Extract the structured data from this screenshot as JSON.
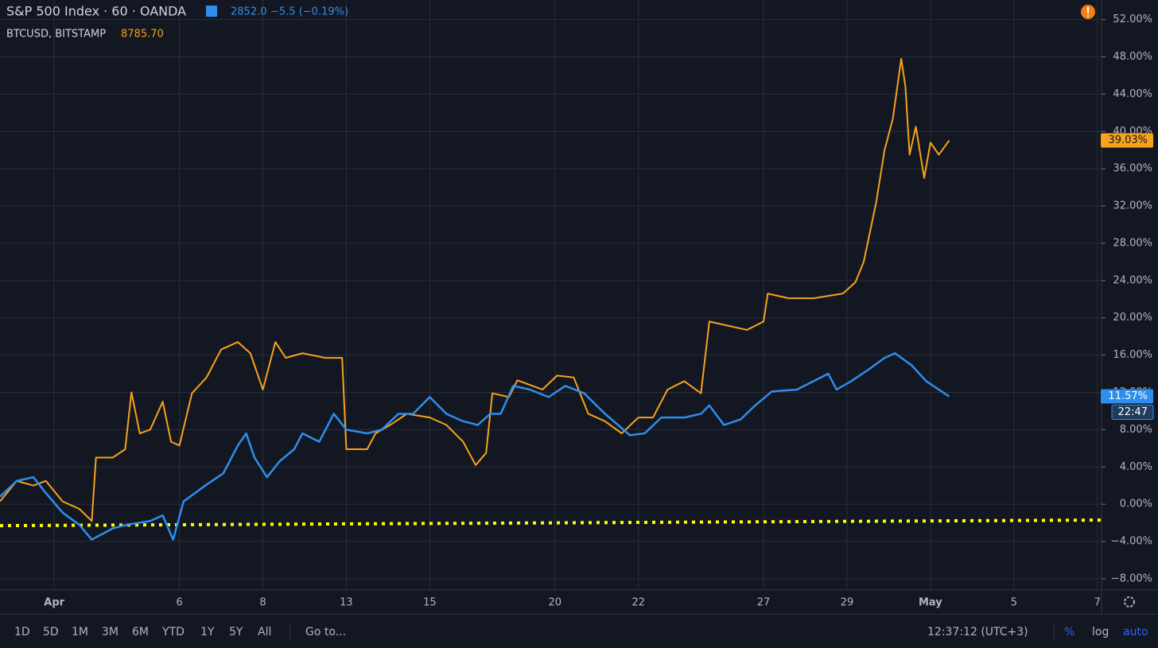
{
  "chart_data": {
    "type": "line",
    "series": [
      {
        "name": "S&P 500 Index · 60 · OANDA",
        "quote": "2852.0",
        "change": "−5.5 (−0.19%)",
        "color": "#2f8eed",
        "last_label": "11.57%",
        "countdown": "22:47",
        "x": [
          -1.3,
          -0.9,
          -0.5,
          -0.2,
          0.2,
          0.6,
          0.9,
          1.4,
          1.75,
          2.3,
          2.6,
          2.85,
          3.1,
          3.65,
          4.05,
          4.4,
          4.6,
          4.8,
          5.1,
          5.4,
          5.75,
          5.95,
          6.35,
          6.7,
          7.0,
          7.5,
          7.85,
          8.25,
          8.6,
          9.0,
          9.4,
          9.8,
          10.15,
          10.45,
          10.7,
          11.0,
          11.4,
          11.85,
          12.25,
          12.7,
          13.2,
          13.8,
          14.15,
          14.55,
          15.1,
          15.5,
          15.7,
          16.05,
          16.45,
          16.8,
          17.2,
          17.8,
          18.55,
          18.75,
          19.1,
          19.5,
          19.9,
          20.15,
          20.55,
          20.9,
          21.2,
          21.45
        ],
        "values": [
          0.8,
          2.5,
          2.9,
          1.2,
          -0.9,
          -2.2,
          -3.8,
          -2.6,
          -2.2,
          -1.8,
          -1.2,
          -3.8,
          0.3,
          2.1,
          3.3,
          6.3,
          7.6,
          5,
          2.9,
          4.6,
          5.9,
          7.6,
          6.7,
          9.7,
          8,
          7.6,
          8,
          9.7,
          9.7,
          11.5,
          9.7,
          8.9,
          8.5,
          9.7,
          9.7,
          12.7,
          12.3,
          11.5,
          12.7,
          11.9,
          9.7,
          7.4,
          7.6,
          9.3,
          9.3,
          9.7,
          10.6,
          8.5,
          9.1,
          10.6,
          12.1,
          12.3,
          14,
          12.3,
          13.2,
          14.4,
          15.7,
          16.2,
          14.9,
          13.2,
          12.3,
          11.57
        ]
      },
      {
        "name": "BTCUSD, BITSTAMP",
        "quote": "8785.70",
        "color": "#f7a21b",
        "last_label": "39.03%",
        "x": [
          -1.3,
          -0.9,
          -0.5,
          -0.2,
          0.2,
          0.6,
          0.9,
          1.0,
          1.4,
          1.7,
          1.85,
          2.05,
          2.3,
          2.6,
          2.8,
          3.0,
          3.3,
          3.65,
          4.0,
          4.4,
          4.7,
          5.0,
          5.3,
          5.55,
          5.95,
          6.5,
          6.9,
          7.0,
          7.5,
          7.7,
          8.05,
          8.45,
          9.0,
          9.4,
          9.8,
          10.1,
          10.35,
          10.5,
          10.9,
          11.1,
          11.7,
          12.05,
          12.45,
          12.8,
          13.2,
          13.6,
          14.0,
          14.35,
          14.7,
          15.1,
          15.5,
          15.7,
          16.2,
          16.6,
          17.0,
          17.1,
          17.6,
          18.2,
          18.9,
          19.2,
          19.4,
          19.7,
          19.9,
          20.1,
          20.3,
          20.4,
          20.5,
          20.65,
          20.85,
          21.0,
          21.2,
          21.45
        ],
        "values": [
          0.3,
          2.5,
          2,
          2.5,
          0.3,
          -0.5,
          -1.8,
          5,
          5,
          5.9,
          12,
          7.6,
          8,
          11,
          6.7,
          6.3,
          11.9,
          13.6,
          16.6,
          17.4,
          16.2,
          12.3,
          17.4,
          15.7,
          16.2,
          15.7,
          15.7,
          5.9,
          5.9,
          7.6,
          8.5,
          9.7,
          9.3,
          8.5,
          6.7,
          4.2,
          5.5,
          11.9,
          11.5,
          13.3,
          12.3,
          13.8,
          13.6,
          9.7,
          8.9,
          7.6,
          9.3,
          9.3,
          12.3,
          13.2,
          11.9,
          19.6,
          19.1,
          18.7,
          19.6,
          22.6,
          22.1,
          22.1,
          22.6,
          23.8,
          26,
          32.4,
          38,
          41.4,
          47.8,
          44.8,
          37.5,
          40.5,
          35,
          38.8,
          37.5,
          39.03
        ]
      }
    ],
    "reference_line": {
      "x": [
        -1.3,
        25.1
      ],
      "values": [
        -2.3,
        -1.7
      ],
      "color": "#ffff00"
    },
    "xlim": [
      -1.3,
      25.1
    ],
    "xticks": [
      {
        "value": 0,
        "label": "Apr"
      },
      {
        "value": 3,
        "label": "6"
      },
      {
        "value": 5,
        "label": "8"
      },
      {
        "value": 7,
        "label": "13"
      },
      {
        "value": 9,
        "label": "15"
      },
      {
        "value": 12,
        "label": "20"
      },
      {
        "value": 14,
        "label": "22"
      },
      {
        "value": 17,
        "label": "27"
      },
      {
        "value": 19,
        "label": "29"
      },
      {
        "value": 21,
        "label": "May"
      },
      {
        "value": 23,
        "label": "5"
      },
      {
        "value": 25,
        "label": "7"
      }
    ],
    "ylim": [
      -9.2,
      54.1
    ],
    "yticks": [
      {
        "value": 52,
        "label": "52.00%"
      },
      {
        "value": 48,
        "label": "48.00%"
      },
      {
        "value": 44,
        "label": "44.00%"
      },
      {
        "value": 40,
        "label": "40.00%"
      },
      {
        "value": 36,
        "label": "36.00%"
      },
      {
        "value": 32,
        "label": "32.00%"
      },
      {
        "value": 28,
        "label": "28.00%"
      },
      {
        "value": 24,
        "label": "24.00%"
      },
      {
        "value": 20,
        "label": "20.00%"
      },
      {
        "value": 16,
        "label": "16.00%"
      },
      {
        "value": 12,
        "label": "12.00%"
      },
      {
        "value": 8,
        "label": "8.00%"
      },
      {
        "value": 4,
        "label": "4.00%"
      },
      {
        "value": 0,
        "label": "0.00%"
      },
      {
        "value": -4,
        "label": "−4.00%"
      },
      {
        "value": -8,
        "label": "−8.00%"
      }
    ],
    "grid": true
  },
  "toolbar": {
    "ranges": [
      "1D",
      "5D",
      "1M",
      "3M",
      "6M",
      "YTD",
      "1Y",
      "5Y",
      "All"
    ],
    "goto": "Go to...",
    "clock": "12:37:12 (UTC+3)",
    "scale_modes": [
      "%",
      "log",
      "auto"
    ]
  }
}
